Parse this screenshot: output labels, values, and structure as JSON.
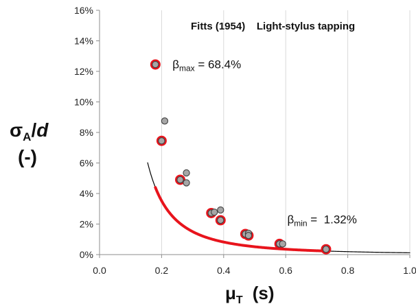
{
  "chart_data": {
    "type": "scatter",
    "title": "Fitts (1954)    Light-stylus tapping",
    "ylabel": {
      "main": "σ",
      "sub": "A",
      "slash": "/",
      "var": "d",
      "unit": "(-)"
    },
    "xlabel": {
      "main": "μ",
      "sub": "T",
      "unit": "(s)"
    },
    "xlim": [
      0,
      1.0
    ],
    "ylim": [
      0,
      16
    ],
    "xticks": [
      0.0,
      0.2,
      0.4,
      0.6,
      0.8,
      1.0
    ],
    "xtick_labels": [
      "0.0",
      "0.2",
      "0.4",
      "0.6",
      "0.8",
      "1.0"
    ],
    "yticks": [
      0,
      2,
      4,
      6,
      8,
      10,
      12,
      14,
      16
    ],
    "ytick_labels": [
      "0%",
      "2%",
      "4%",
      "6%",
      "8%",
      "10%",
      "12%",
      "14%",
      "16%"
    ],
    "grid": "vertical",
    "series": [
      {
        "points": [
          [
            0.18,
            12.45
          ],
          [
            0.21,
            8.75
          ],
          [
            0.2,
            7.45
          ],
          [
            0.26,
            4.9
          ],
          [
            0.28,
            5.35
          ],
          [
            0.28,
            4.7
          ],
          [
            0.36,
            2.72
          ],
          [
            0.37,
            2.78
          ],
          [
            0.39,
            2.92
          ],
          [
            0.39,
            2.25
          ],
          [
            0.47,
            1.35
          ],
          [
            0.48,
            1.4
          ],
          [
            0.48,
            1.25
          ],
          [
            0.58,
            0.7
          ],
          [
            0.59,
            0.7
          ],
          [
            0.73,
            0.35
          ]
        ],
        "highlighted": [
          [
            0.18,
            12.45
          ],
          [
            0.2,
            7.45
          ],
          [
            0.26,
            4.9
          ],
          [
            0.36,
            2.72
          ],
          [
            0.39,
            2.25
          ],
          [
            0.47,
            1.35
          ],
          [
            0.48,
            1.25
          ],
          [
            0.58,
            0.7
          ],
          [
            0.73,
            0.35
          ]
        ],
        "marker_fill": "#a6a6a6",
        "marker_edge": "#404040",
        "highlight_edge": "#e8141c"
      }
    ],
    "curves": [
      {
        "kind": "power",
        "a": 0.12,
        "b": 2.1,
        "x_range": [
          0.155,
          1.0
        ],
        "color": "#000000",
        "width": 1.2
      },
      {
        "kind": "power",
        "a": 0.12,
        "b": 2.1,
        "x_range": [
          0.18,
          0.73
        ],
        "color": "#e8141c",
        "width": 4
      }
    ],
    "annotations": [
      {
        "sym": "β",
        "sub": "max",
        "text": " = 68.4%",
        "x": 0.235,
        "y": 12.2
      },
      {
        "sym": "β",
        "sub": "min",
        "text": " =  1.32%",
        "x": 0.605,
        "y": 2.05
      }
    ]
  }
}
